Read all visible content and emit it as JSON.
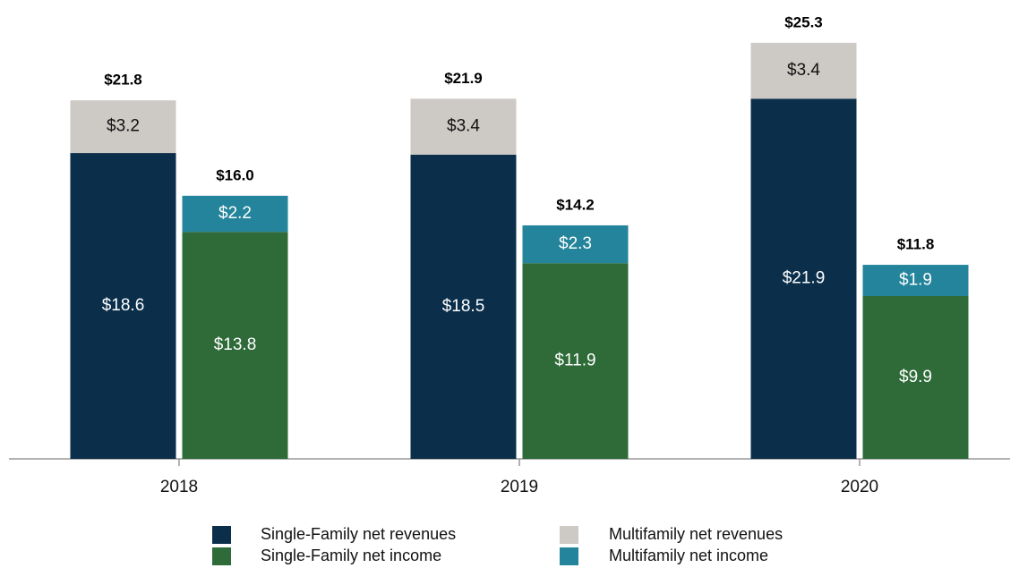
{
  "chart_data": {
    "type": "grouped_stacked_bar",
    "categories": [
      "2018",
      "2019",
      "2020"
    ],
    "stacks": [
      "revenues",
      "income"
    ],
    "ylim": [
      0,
      26
    ],
    "series": [
      {
        "name": "Single-Family net revenues",
        "stack": "revenues",
        "color": "#0b2f4b",
        "label_color": "#ffffff",
        "values": [
          18.6,
          18.5,
          21.9
        ],
        "value_labels": [
          "$18.6",
          "$18.5",
          "$21.9"
        ]
      },
      {
        "name": "Multifamily net revenues",
        "stack": "revenues",
        "color": "#cdc9c5",
        "label_color": "#111111",
        "values": [
          3.2,
          3.4,
          3.4
        ],
        "value_labels": [
          "$3.2",
          "$3.4",
          "$3.4"
        ]
      },
      {
        "name": "Single-Family net income",
        "stack": "income",
        "color": "#2e6b38",
        "label_color": "#ffffff",
        "values": [
          13.8,
          11.9,
          9.9
        ],
        "value_labels": [
          "$13.8",
          "$11.9",
          "$9.9"
        ]
      },
      {
        "name": "Multifamily net income",
        "stack": "income",
        "color": "#24849b",
        "label_color": "#ffffff",
        "values": [
          2.2,
          2.3,
          1.9
        ],
        "value_labels": [
          "$2.2",
          "$2.3",
          "$1.9"
        ]
      }
    ],
    "totals": {
      "revenues": {
        "values": [
          21.8,
          21.9,
          25.3
        ],
        "value_labels": [
          "$21.8",
          "$21.9",
          "$25.3"
        ]
      },
      "income": {
        "values": [
          16.0,
          14.2,
          11.8
        ],
        "value_labels": [
          "$16.0",
          "$14.2",
          "$11.8"
        ]
      }
    }
  }
}
